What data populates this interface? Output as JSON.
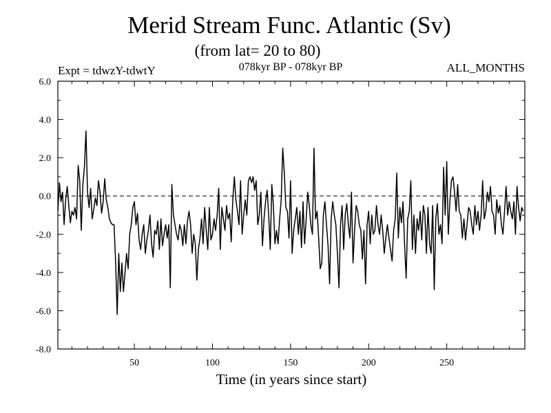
{
  "chart_data": {
    "type": "line",
    "title": "Merid Stream Func. Atlantic (Sv)",
    "subtitle": "(from lat= 20 to 80)",
    "left_label": "Expt = tdwzY-tdwtY",
    "center_label": "078kyr BP - 078kyr BP",
    "right_label": "ALL_MONTHS",
    "xlabel": "Time (in years since start)",
    "ylabel": "",
    "xlim": [
      1,
      300
    ],
    "ylim": [
      -8,
      6
    ],
    "x_ticks": [
      50,
      100,
      150,
      200,
      250
    ],
    "x_tick_labels": [
      "50",
      "100",
      "150",
      "200",
      "250"
    ],
    "y_ticks": [
      -8,
      -6,
      -4,
      -2,
      0,
      2,
      4,
      6
    ],
    "y_tick_labels": [
      "-8.0",
      "-6.0",
      "-4.0",
      "-2.0",
      "0.0",
      "2.0",
      "4.0",
      "6.0"
    ],
    "reference_line": {
      "y": 0,
      "style": "dashed"
    },
    "grid": false,
    "series": [
      {
        "x_start": 1,
        "x_step": 1,
        "values": [
          -0.8,
          0.7,
          -0.3,
          0.2,
          -1.5,
          -0.2,
          0.5,
          -0.5,
          -1.4,
          -0.8,
          -1.0,
          -0.6,
          -1.2,
          1.6,
          0.8,
          -1.8,
          0.6,
          1.5,
          3.4,
          0.2,
          -0.6,
          0.4,
          -1.2,
          -0.7,
          -0.1,
          -0.5,
          0.8,
          0.2,
          -0.9,
          -0.3,
          0.9,
          -0.2,
          -0.6,
          -1.2,
          -1.4,
          -1.5,
          -1.5,
          -3.5,
          -6.2,
          -3.0,
          -5.0,
          -3.5,
          -5.0,
          -4.0,
          -3.0,
          -3.8,
          -2.0,
          -1.5,
          -0.6,
          -0.3,
          -1.5,
          -0.9,
          -2.3,
          -2.8,
          -2.0,
          -1.5,
          -3.0,
          -2.3,
          -1.8,
          -1.0,
          -2.5,
          -3.2,
          -1.8,
          -2.0,
          -1.3,
          -2.8,
          -1.2,
          -2.6,
          -2.0,
          -1.5,
          -2.2,
          -1.5,
          -4.8,
          0.6,
          -1.0,
          -1.5,
          -2.0,
          -2.3,
          -1.5,
          -1.8,
          -2.6,
          -1.5,
          -2.5,
          -1.3,
          -0.8,
          -1.5,
          -3.0,
          -2.0,
          -2.5,
          -4.4,
          -2.8,
          -2.2,
          -1.2,
          -2.5,
          -0.6,
          -1.8,
          -2.8,
          -0.6,
          -2.3,
          -2.0,
          -1.2,
          -1.8,
          -1.0,
          0.4,
          -2.8,
          -0.6,
          -1.2,
          -1.8,
          -0.5,
          -1.2,
          -0.9,
          -2.4,
          -0.2,
          1.0,
          -0.2,
          -0.8,
          -1.5,
          0.8,
          -2.0,
          -1.0,
          -0.2,
          -1.0,
          0.8,
          1.0,
          0.7,
          1.0,
          0.3,
          0.8,
          -1.5,
          -1.0,
          0.2,
          -2.6,
          -1.2,
          -0.3,
          0.3,
          -1.0,
          -2.8,
          0.6,
          -0.5,
          -2.5,
          -1.8,
          -2.5,
          -1.2,
          -0.2,
          2.5,
          1.2,
          -0.6,
          -0.8,
          -2.2,
          0.8,
          -3.0,
          -1.8,
          -1.2,
          -0.6,
          -2.0,
          -0.8,
          -2.7,
          -0.3,
          -2.5,
          -1.2,
          0.2,
          -0.5,
          -1.5,
          -2.0,
          2.5,
          -1.2,
          -0.8,
          -2.2,
          -3.8,
          -3.5,
          -1.0,
          -0.3,
          -1.5,
          -2.6,
          -4.6,
          -1.2,
          -0.3,
          -1.0,
          -1.5,
          -3.0,
          -4.8,
          -1.5,
          -0.5,
          -2.8,
          -1.0,
          -0.4,
          -1.5,
          -2.2,
          0.2,
          -3.5,
          -1.8,
          -0.5,
          -0.8,
          -1.5,
          -1.8,
          -3.3,
          -1.8,
          -4.6,
          -1.5,
          -0.8,
          -2.5,
          -1.0,
          -2.0,
          -1.8,
          -0.5,
          -1.5,
          -2.0,
          -1.0,
          -1.8,
          -3.0,
          -2.2,
          -1.5,
          -2.2,
          -2.8,
          -3.4,
          -1.8,
          -1.2,
          1.2,
          -2.2,
          -0.6,
          -1.4,
          -0.3,
          -2.5,
          -4.3,
          -1.2,
          -0.8,
          0.8,
          -2.8,
          -1.0,
          -3.0,
          -1.2,
          -1.8,
          -0.8,
          -2.3,
          -0.5,
          -1.0,
          -3.0,
          -0.6,
          -2.5,
          -3.0,
          -0.5,
          -4.9,
          -1.2,
          -0.4,
          -2.0,
          -1.5,
          -2.5,
          1.5,
          -1.0,
          1.8,
          -2.0,
          -0.3,
          0.8,
          1.0,
          0.2,
          -0.8,
          0.6,
          -0.8,
          -1.0,
          -2.2,
          -1.2,
          -2.3,
          -1.5,
          -0.6,
          -0.8,
          -1.5,
          -2.0,
          -0.5,
          -1.5,
          -0.8,
          -1.8,
          -1.0,
          0.8,
          -1.2,
          -0.8,
          0.2,
          -0.3,
          0.5,
          -0.8,
          -1.0,
          -2.0,
          -0.2,
          -0.9,
          -0.5,
          -1.5,
          -2.0,
          -0.8,
          0.5,
          -1.0,
          -0.3,
          -0.8,
          -1.2,
          -0.3,
          -2.0,
          0.5,
          -0.6,
          -1.3,
          -0.6,
          -0.8
        ]
      }
    ]
  }
}
